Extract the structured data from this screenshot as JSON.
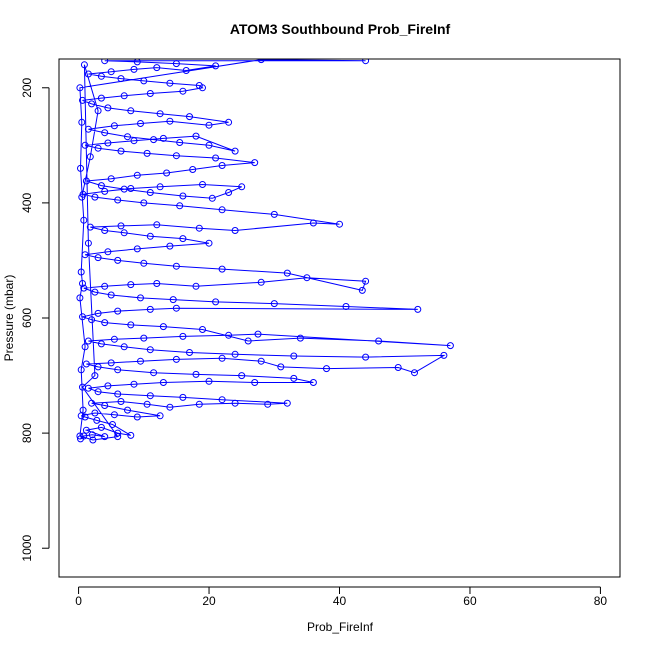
{
  "chart_data": {
    "type": "line",
    "title": "ATOM3 Southbound Prob_FireInf",
    "xlabel": "Prob_FireInf",
    "ylabel": "Pressure (mbar)",
    "xlim": [
      -3,
      83
    ],
    "ylim": [
      1050,
      150
    ],
    "y_reversed": true,
    "xticks": [
      0,
      20,
      40,
      60,
      80
    ],
    "yticks": [
      200,
      400,
      600,
      800,
      1000
    ],
    "grid": false,
    "legend": "none",
    "markers": "open-circle",
    "series": [
      {
        "color": "#0000ff",
        "points": [
          [
            0.3,
            810
          ],
          [
            0.8,
            805
          ],
          [
            2.1,
            803
          ],
          [
            4.0,
            806
          ],
          [
            1.2,
            795
          ],
          [
            3.5,
            790
          ],
          [
            6.0,
            800
          ],
          [
            8.0,
            804
          ],
          [
            5.2,
            785
          ],
          [
            2.8,
            778
          ],
          [
            1.0,
            772
          ],
          [
            0.4,
            770
          ],
          [
            2.5,
            765
          ],
          [
            5.5,
            768
          ],
          [
            9.0,
            772
          ],
          [
            12.5,
            770
          ],
          [
            7.5,
            760
          ],
          [
            4.0,
            752
          ],
          [
            2.0,
            748
          ],
          [
            6.5,
            745
          ],
          [
            10.5,
            750
          ],
          [
            14.0,
            755
          ],
          [
            18.5,
            750
          ],
          [
            24.0,
            748
          ],
          [
            29.0,
            750
          ],
          [
            32.0,
            748
          ],
          [
            22.0,
            742
          ],
          [
            16.0,
            738
          ],
          [
            11.0,
            735
          ],
          [
            6.0,
            732
          ],
          [
            3.0,
            728
          ],
          [
            1.5,
            722
          ],
          [
            4.5,
            718
          ],
          [
            8.5,
            715
          ],
          [
            13.0,
            712
          ],
          [
            20.0,
            710
          ],
          [
            27.0,
            712
          ],
          [
            36.0,
            712
          ],
          [
            33.0,
            705
          ],
          [
            25.0,
            700
          ],
          [
            18.0,
            698
          ],
          [
            11.5,
            695
          ],
          [
            6.0,
            690
          ],
          [
            3.0,
            685
          ],
          [
            1.2,
            680
          ],
          [
            5.0,
            678
          ],
          [
            9.5,
            675
          ],
          [
            15.0,
            672
          ],
          [
            22.0,
            670
          ],
          [
            28.0,
            675
          ],
          [
            31.0,
            685
          ],
          [
            38.0,
            688
          ],
          [
            49.0,
            686
          ],
          [
            51.5,
            695
          ],
          [
            56.0,
            665
          ],
          [
            44.0,
            668
          ],
          [
            33.0,
            666
          ],
          [
            24.0,
            663
          ],
          [
            17.0,
            660
          ],
          [
            11.0,
            655
          ],
          [
            7.0,
            650
          ],
          [
            3.5,
            645
          ],
          [
            1.5,
            640
          ],
          [
            5.5,
            637
          ],
          [
            10.0,
            635
          ],
          [
            16.0,
            632
          ],
          [
            23.0,
            630
          ],
          [
            27.5,
            628
          ],
          [
            57.0,
            648
          ],
          [
            46.0,
            640
          ],
          [
            34.0,
            635
          ],
          [
            26.0,
            640
          ],
          [
            19.0,
            620
          ],
          [
            13.0,
            615
          ],
          [
            8.0,
            612
          ],
          [
            4.0,
            608
          ],
          [
            2.0,
            603
          ],
          [
            0.6,
            598
          ],
          [
            3.0,
            592
          ],
          [
            6.0,
            588
          ],
          [
            11.0,
            585
          ],
          [
            15.0,
            583
          ],
          [
            52.0,
            585
          ],
          [
            41.0,
            580
          ],
          [
            30.0,
            575
          ],
          [
            21.0,
            572
          ],
          [
            14.5,
            568
          ],
          [
            9.5,
            565
          ],
          [
            5.0,
            560
          ],
          [
            2.5,
            555
          ],
          [
            0.8,
            548
          ],
          [
            4.0,
            545
          ],
          [
            8.0,
            542
          ],
          [
            12.0,
            540
          ],
          [
            18.0,
            545
          ],
          [
            28.0,
            538
          ],
          [
            35.0,
            530
          ],
          [
            44.0,
            536
          ],
          [
            43.5,
            552
          ],
          [
            32.0,
            522
          ],
          [
            22.0,
            515
          ],
          [
            15.0,
            510
          ],
          [
            10.0,
            505
          ],
          [
            6.0,
            500
          ],
          [
            3.0,
            495
          ],
          [
            1.0,
            490
          ],
          [
            4.5,
            485
          ],
          [
            9.0,
            480
          ],
          [
            14.0,
            475
          ],
          [
            20.0,
            470
          ],
          [
            16.0,
            462
          ],
          [
            11.0,
            458
          ],
          [
            7.0,
            452
          ],
          [
            4.0,
            448
          ],
          [
            1.8,
            442
          ],
          [
            6.5,
            440
          ],
          [
            12.0,
            438
          ],
          [
            18.5,
            444
          ],
          [
            24.0,
            448
          ],
          [
            36.0,
            435
          ],
          [
            40.0,
            437
          ],
          [
            30.0,
            420
          ],
          [
            22.0,
            412
          ],
          [
            15.5,
            405
          ],
          [
            10.0,
            400
          ],
          [
            6.0,
            395
          ],
          [
            2.5,
            390
          ],
          [
            0.7,
            385
          ],
          [
            4.0,
            380
          ],
          [
            8.0,
            375
          ],
          [
            12.5,
            372
          ],
          [
            19.0,
            368
          ],
          [
            25.0,
            372
          ],
          [
            23.0,
            382
          ],
          [
            20.5,
            392
          ],
          [
            16.0,
            388
          ],
          [
            11.0,
            382
          ],
          [
            7.0,
            376
          ],
          [
            3.5,
            370
          ],
          [
            1.2,
            362
          ],
          [
            5.0,
            358
          ],
          [
            9.0,
            352
          ],
          [
            13.5,
            348
          ],
          [
            17.5,
            342
          ],
          [
            22.0,
            335
          ],
          [
            27.0,
            330
          ],
          [
            21.0,
            322
          ],
          [
            15.0,
            318
          ],
          [
            10.5,
            314
          ],
          [
            6.5,
            310
          ],
          [
            3.0,
            305
          ],
          [
            1.0,
            300
          ],
          [
            4.5,
            296
          ],
          [
            8.5,
            292
          ],
          [
            13.0,
            288
          ],
          [
            18.0,
            284
          ],
          [
            24.0,
            310
          ],
          [
            20.0,
            300
          ],
          [
            15.5,
            295
          ],
          [
            11.5,
            290
          ],
          [
            7.5,
            285
          ],
          [
            4.0,
            278
          ],
          [
            1.5,
            272
          ],
          [
            5.5,
            266
          ],
          [
            9.5,
            262
          ],
          [
            14.0,
            258
          ],
          [
            20.0,
            265
          ],
          [
            23.0,
            260
          ],
          [
            17.0,
            250
          ],
          [
            12.5,
            245
          ],
          [
            8.0,
            240
          ],
          [
            4.5,
            235
          ],
          [
            2.0,
            228
          ],
          [
            0.6,
            222
          ],
          [
            3.5,
            218
          ],
          [
            7.0,
            214
          ],
          [
            11.0,
            210
          ],
          [
            16.0,
            206
          ],
          [
            19.0,
            200
          ],
          [
            18.5,
            196
          ],
          [
            14.0,
            192
          ],
          [
            10.0,
            188
          ],
          [
            6.5,
            184
          ],
          [
            3.5,
            180
          ],
          [
            1.5,
            176
          ],
          [
            5.0,
            172
          ],
          [
            8.5,
            168
          ],
          [
            12.0,
            165
          ],
          [
            16.5,
            170
          ],
          [
            21.0,
            162
          ],
          [
            15.0,
            158
          ],
          [
            9.0,
            155
          ],
          [
            4.0,
            153
          ],
          [
            44.0,
            153
          ],
          [
            28.0,
            151
          ],
          [
            0.2,
            200
          ],
          [
            0.5,
            260
          ],
          [
            0.3,
            340
          ],
          [
            0.8,
            430
          ],
          [
            0.4,
            520
          ],
          [
            0.6,
            540
          ],
          [
            0.2,
            565
          ],
          [
            1.0,
            650
          ],
          [
            0.4,
            690
          ],
          [
            0.7,
            760
          ],
          [
            0.2,
            805
          ],
          [
            2.2,
            812
          ],
          [
            6.0,
            806
          ],
          [
            0.6,
            720
          ],
          [
            2.5,
            700
          ],
          [
            1.5,
            470
          ],
          [
            0.9,
            160
          ],
          [
            3.0,
            240
          ],
          [
            1.8,
            320
          ],
          [
            0.5,
            390
          ]
        ]
      }
    ]
  }
}
